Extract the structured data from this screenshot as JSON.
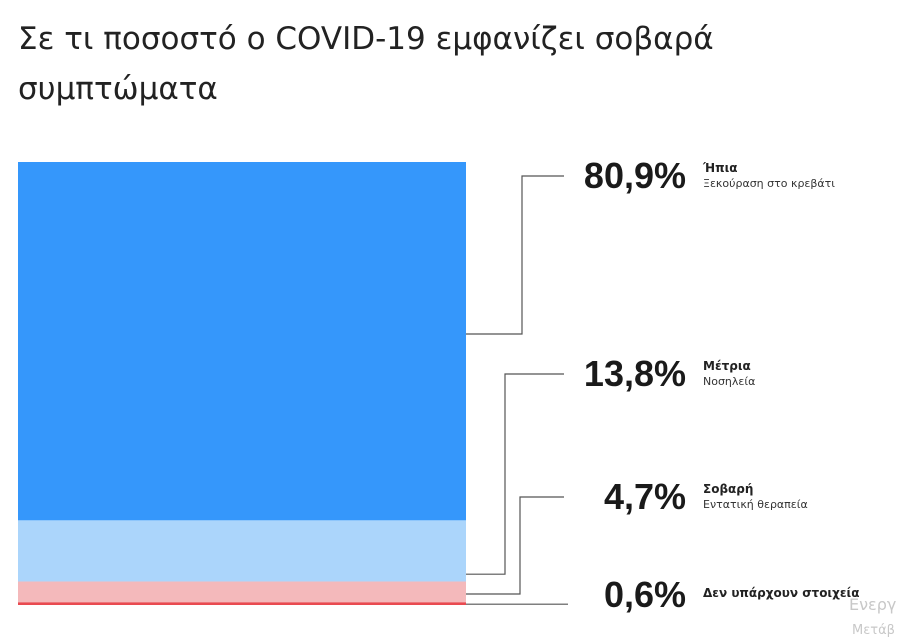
{
  "chart_data": {
    "type": "bar",
    "layout": "stacked-single-column",
    "title": "Σε τι ποσοστό ο COVID-19 εμφανίζει σοβαρά συμπτώματα",
    "unit": "%",
    "segments": [
      {
        "label": "80,9%",
        "value": 80.9,
        "category": "Ήπια",
        "sublabel": "Ξεκούραση στο κρεβάτι",
        "color": "#3597fb"
      },
      {
        "label": "13,8%",
        "value": 13.8,
        "category": "Μέτρια",
        "sublabel": "Νοσηλεία",
        "color": "#abd5fb"
      },
      {
        "label": "4,7%",
        "value": 4.7,
        "category": "Σοβαρή",
        "sublabel": "Εντατική θεραπεία",
        "color": "#f4b9bb"
      },
      {
        "label": "0,6%",
        "value": 0.6,
        "category": "Δεν υπάρχουν στοιχεία",
        "sublabel": "",
        "color": "#e94a50"
      }
    ]
  },
  "watermark": {
    "line1": "Ενεργ",
    "line2": "Μετάβ"
  }
}
